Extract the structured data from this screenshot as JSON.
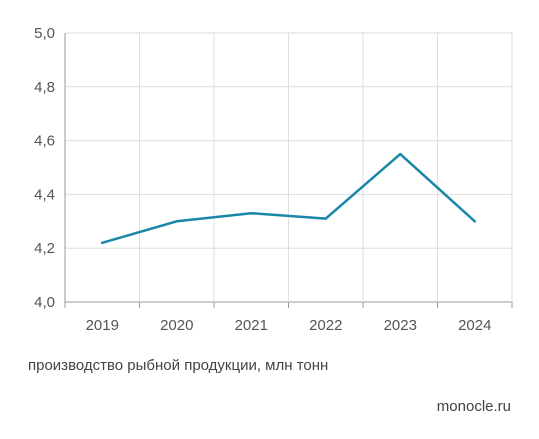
{
  "chart_data": {
    "type": "line",
    "title": "",
    "xlabel": "",
    "ylabel": "",
    "categories": [
      "2019",
      "2020",
      "2021",
      "2022",
      "2023",
      "2024"
    ],
    "series": [
      {
        "values": [
          4.22,
          4.3,
          4.33,
          4.31,
          4.55,
          4.3
        ],
        "color": "#1a86a8"
      }
    ],
    "ylim": [
      4.0,
      5.0
    ],
    "yticks": [
      4.0,
      4.2,
      4.4,
      4.6,
      4.8,
      5.0
    ],
    "ytick_labels": [
      "4,0",
      "4,2",
      "4,4",
      "4,6",
      "4,8",
      "5,0"
    ],
    "grid": true,
    "caption": "производство рыбной продукции, млн тонн",
    "source": "monocle.ru"
  }
}
